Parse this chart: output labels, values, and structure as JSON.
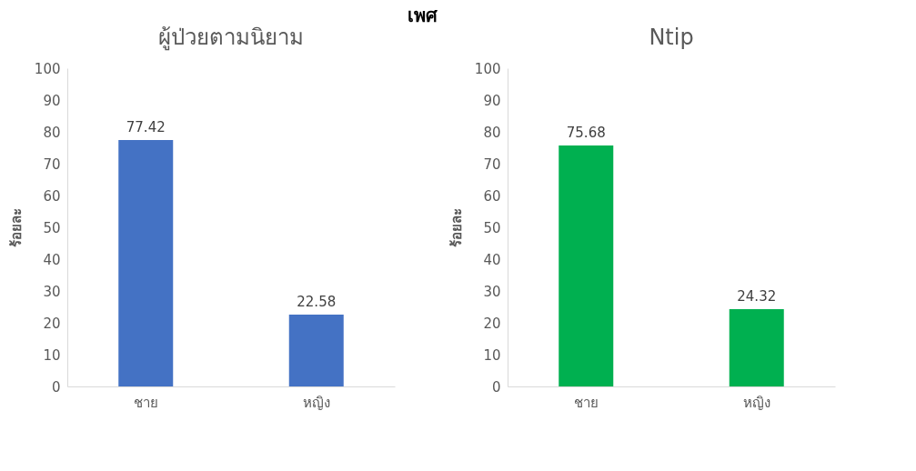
{
  "chart_data": [
    {
      "type": "bar",
      "title": "ผู้ป่วยตามนิยาม",
      "annotations": [
        "เพศ"
      ],
      "ylabel": "ร้อยละ",
      "categories": [
        "ชาย",
        "หญิง"
      ],
      "values": [
        77.42,
        22.58
      ],
      "color": "#4472c4",
      "ylim": [
        0,
        100
      ],
      "yticks": [
        0,
        10,
        20,
        30,
        40,
        50,
        60,
        70,
        80,
        90,
        100
      ],
      "data_labels": true
    },
    {
      "type": "bar",
      "title": "Ntip",
      "ylabel": "ร้อยละ",
      "categories": [
        "ชาย",
        "หญิง"
      ],
      "values": [
        75.68,
        24.32
      ],
      "color": "#00b050",
      "ylim": [
        0,
        100
      ],
      "yticks": [
        0,
        10,
        20,
        30,
        40,
        50,
        60,
        70,
        80,
        90,
        100
      ],
      "data_labels": true
    }
  ]
}
